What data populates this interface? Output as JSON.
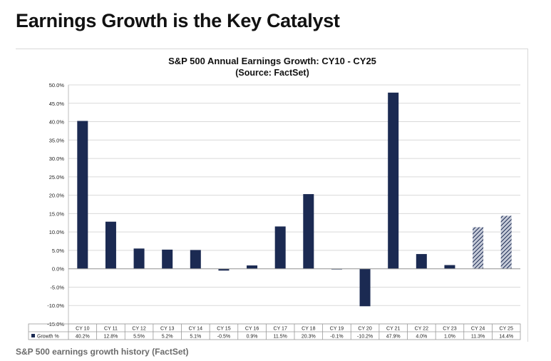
{
  "page": {
    "headline": "Earnings Growth is the Key Catalyst",
    "caption": "S&P 500 earnings growth history (FactSet)"
  },
  "chart_data": {
    "type": "bar",
    "title": "S&P 500 Annual Earnings Growth: CY10 - CY25",
    "subtitle": "(Source: FactSet)",
    "categories": [
      "CY 10",
      "CY 11",
      "CY 12",
      "CY 13",
      "CY 14",
      "CY 15",
      "CY 16",
      "CY 17",
      "CY 18",
      "CY 19",
      "CY 20",
      "CY 21",
      "CY 22",
      "CY 23",
      "CY 24",
      "CY 25"
    ],
    "series": [
      {
        "name": "Growth %",
        "values": [
          40.2,
          12.8,
          5.5,
          5.2,
          5.1,
          -0.5,
          0.9,
          11.5,
          20.3,
          -0.1,
          -10.2,
          47.9,
          4.0,
          1.0,
          11.3,
          14.4
        ],
        "labels": [
          "40.2%",
          "12.8%",
          "5.5%",
          "5.2%",
          "5.1%",
          "-0.5%",
          "0.9%",
          "11.5%",
          "20.3%",
          "-0.1%",
          "-10.2%",
          "47.9%",
          "4.0%",
          "1.0%",
          "11.3%",
          "14.4%"
        ]
      }
    ],
    "estimate_categories": [
      "CY 24",
      "CY 25"
    ],
    "yticks": [
      "50.0%",
      "45.0%",
      "40.0%",
      "35.0%",
      "30.0%",
      "25.0%",
      "20.0%",
      "15.0%",
      "10.0%",
      "5.0%",
      "0.0%",
      "-5.0%",
      "-10.0%",
      "-15.0%"
    ],
    "ylim": [
      -15,
      50
    ],
    "grid": true,
    "legend": "table-below",
    "colors": {
      "bar": "#1b2a52",
      "estimate_hatch": "#8a93ad",
      "grid": "#d9d9d9"
    }
  }
}
